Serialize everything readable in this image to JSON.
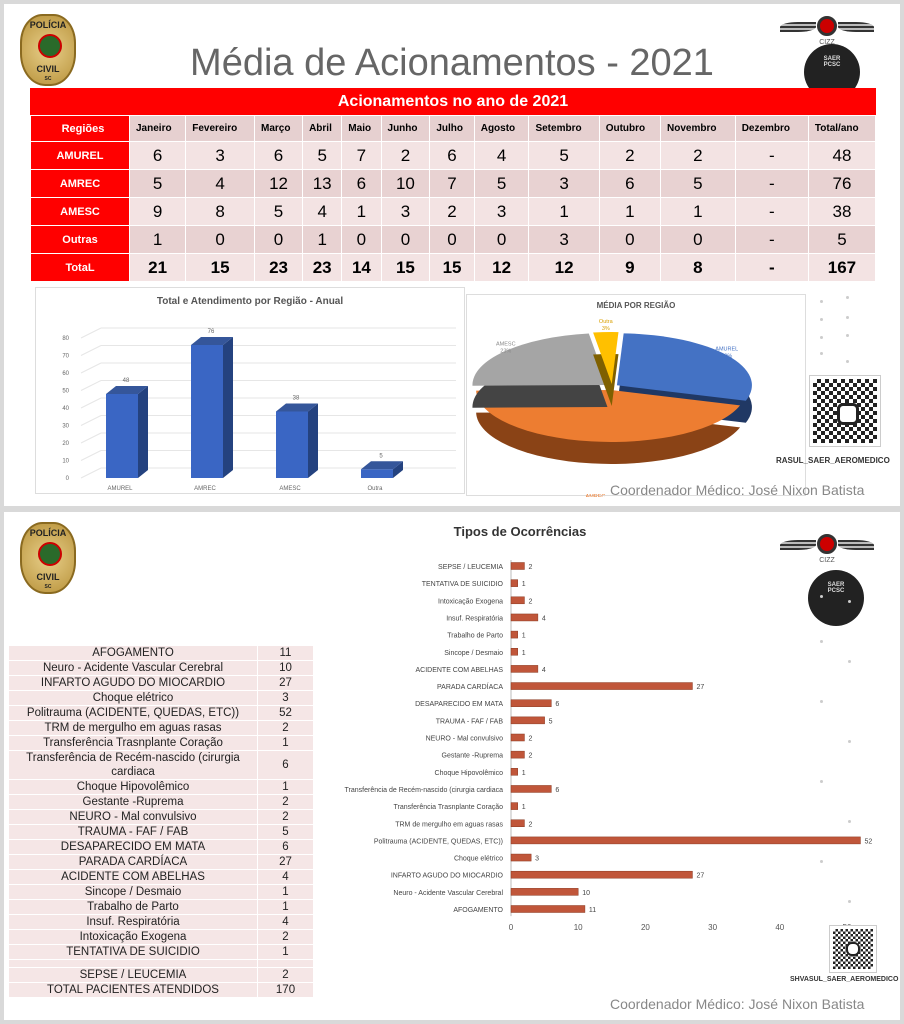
{
  "page1": {
    "title": "Média de Acionamentos - 2021",
    "logos": {
      "policia": [
        "POLÍCIA",
        "CIVIL",
        "SC"
      ],
      "wings": "CIZZ",
      "saer": [
        "SAER",
        "PCSC"
      ]
    },
    "table": {
      "caption": "Acionamentos no ano de 2021",
      "headers": [
        "Regiões",
        "Janeiro",
        "Fevereiro",
        "Março",
        "Abril",
        "Maio",
        "Junho",
        "Julho",
        "Agosto",
        "Setembro",
        "Outubro",
        "Novembro",
        "Dezembro",
        "Total/ano"
      ],
      "rows": [
        {
          "label": "AMUREL",
          "values": [
            "6",
            "3",
            "6",
            "5",
            "7",
            "2",
            "6",
            "4",
            "5",
            "2",
            "2",
            "-",
            "48"
          ]
        },
        {
          "label": "AMREC",
          "values": [
            "5",
            "4",
            "12",
            "13",
            "6",
            "10",
            "7",
            "5",
            "3",
            "6",
            "5",
            "-",
            "76"
          ]
        },
        {
          "label": "AMESC",
          "values": [
            "9",
            "8",
            "5",
            "4",
            "1",
            "3",
            "2",
            "3",
            "1",
            "1",
            "1",
            "-",
            "38"
          ]
        },
        {
          "label": "Outras",
          "values": [
            "1",
            "0",
            "0",
            "1",
            "0",
            "0",
            "0",
            "0",
            "3",
            "0",
            "0",
            "-",
            "5"
          ]
        },
        {
          "label": "TotaL",
          "values": [
            "21",
            "15",
            "23",
            "23",
            "14",
            "15",
            "15",
            "12",
            "12",
            "9",
            "8",
            "-",
            "167"
          ]
        }
      ]
    },
    "qr_caption": "RASUL_SAER_AEROMEDICO",
    "coordinator": "Coordenador Médico: José Nixon Batista"
  },
  "page2": {
    "table": {
      "rows": [
        {
          "label": "AFOGAMENTO",
          "value": "11"
        },
        {
          "label": "Neuro - Acidente Vascular Cerebral",
          "value": "10"
        },
        {
          "label": "INFARTO AGUDO DO MIOCARDIO",
          "value": "27"
        },
        {
          "label": "Choque elétrico",
          "value": "3"
        },
        {
          "label": "Politrauma (ACIDENTE, QUEDAS, ETC))",
          "value": "52"
        },
        {
          "label": "TRM de mergulho em aguas rasas",
          "value": "2"
        },
        {
          "label": "Transferência Trasnplante Coração",
          "value": "1"
        },
        {
          "label": "Transferência de Recém-nascido (cirurgia cardiaca",
          "value": "6"
        },
        {
          "label": "Choque Hipovolêmico",
          "value": "1"
        },
        {
          "label": "Gestante -Ruprema",
          "value": "2"
        },
        {
          "label": "NEURO - Mal convulsivo",
          "value": "2"
        },
        {
          "label": "TRAUMA - FAF / FAB",
          "value": "5"
        },
        {
          "label": "DESAPARECIDO EM MATA",
          "value": "6"
        },
        {
          "label": "PARADA CARDÍACA",
          "value": "27"
        },
        {
          "label": "ACIDENTE COM ABELHAS",
          "value": "4"
        },
        {
          "label": "Sincope / Desmaio",
          "value": "1"
        },
        {
          "label": "Trabalho de Parto",
          "value": "1"
        },
        {
          "label": "Insuf. Respiratória",
          "value": "4"
        },
        {
          "label": "Intoxicação Exogena",
          "value": "2"
        },
        {
          "label": "TENTATIVA DE SUICIDIO",
          "value": "1"
        },
        {
          "label": "",
          "value": ""
        },
        {
          "label": "SEPSE / LEUCEMIA",
          "value": "2"
        },
        {
          "label": "TOTAL PACIENTES ATENDIDOS",
          "value": "170"
        }
      ]
    },
    "qr_caption": "SHVASUL_SAER_AEROMEDICO",
    "coordinator": "Coordenador Médico: José Nixon Batista"
  },
  "chart_data": [
    {
      "type": "bar",
      "title": "Total e Atendimento por Região - Anual",
      "categories": [
        "AMUREL",
        "AMREC",
        "AMESC",
        "Outra"
      ],
      "values": [
        48,
        76,
        38,
        5
      ],
      "ylim": [
        0,
        80
      ],
      "yticks": [
        0,
        10,
        20,
        30,
        40,
        50,
        60,
        70,
        80
      ],
      "grid": true,
      "color": "#3a66c4",
      "style": "3d"
    },
    {
      "type": "pie",
      "title": "MÉDIA POR REGIÃO",
      "slices": [
        {
          "label": "AMUREL",
          "value": 29,
          "color": "#4472c4"
        },
        {
          "label": "AMREC",
          "value": 45,
          "color": "#ed7d31"
        },
        {
          "label": "AMESC",
          "value": 23,
          "color": "#a5a5a5"
        },
        {
          "label": "Outra",
          "value": 3,
          "color": "#ffc000"
        }
      ],
      "unit": "%",
      "style": "3d"
    },
    {
      "type": "bar",
      "orientation": "horizontal",
      "title": "Tipos de Ocorrências",
      "color": "#c0563a",
      "categories": [
        "SEPSE / LEUCEMIA",
        "TENTATIVA DE SUICIDIO",
        "Intoxicação Exogena",
        "Insuf. Respiratória",
        "Trabalho de Parto",
        "Sincope / Desmaio",
        "ACIDENTE COM ABELHAS",
        "PARADA CARDÍACA",
        "DESAPARECIDO EM MATA",
        "TRAUMA - FAF / FAB",
        "NEURO - Mal convulsivo",
        "Gestante -Ruprema",
        "Choque Hipovolêmico",
        "Transferência de Recém-nascido (cirurgia cardiaca",
        "Transferência Trasnplante Coração",
        "TRM de mergulho em aguas rasas",
        "Politrauma (ACIDENTE, QUEDAS, ETC))",
        "Choque elétrico",
        "INFARTO AGUDO DO MIOCARDIO",
        "Neuro - Acidente Vascular Cerebral",
        "AFOGAMENTO"
      ],
      "values": [
        2,
        1,
        2,
        4,
        1,
        1,
        4,
        27,
        6,
        5,
        2,
        2,
        1,
        6,
        1,
        2,
        52,
        3,
        27,
        10,
        11
      ],
      "xlim": [
        0,
        55
      ],
      "xticks": [
        0,
        10,
        20,
        30,
        40,
        50
      ]
    }
  ]
}
